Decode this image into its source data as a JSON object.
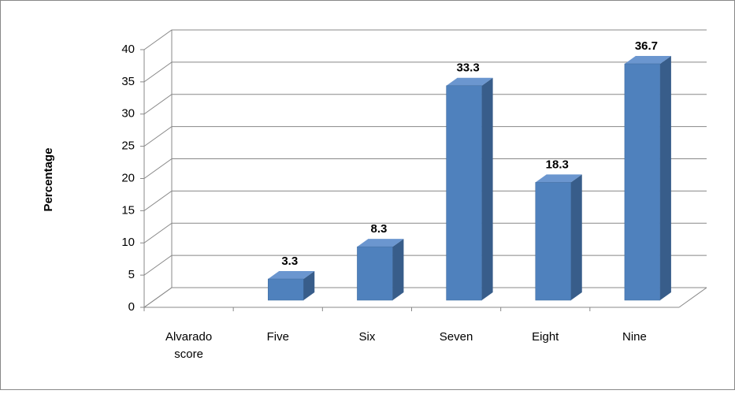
{
  "chart_data": {
    "type": "bar3d",
    "y_label": "Percentage",
    "categories": [
      "Alvarado score",
      "Five",
      "Six",
      "Seven",
      "Eight",
      "Nine"
    ],
    "values": [
      null,
      3.3,
      8.3,
      33.3,
      18.3,
      36.7
    ],
    "color": "#4f81bd",
    "ylim": [
      0,
      40
    ],
    "yticks": [
      0,
      5,
      10,
      15,
      20,
      25,
      30,
      35,
      40
    ],
    "grid": true
  }
}
